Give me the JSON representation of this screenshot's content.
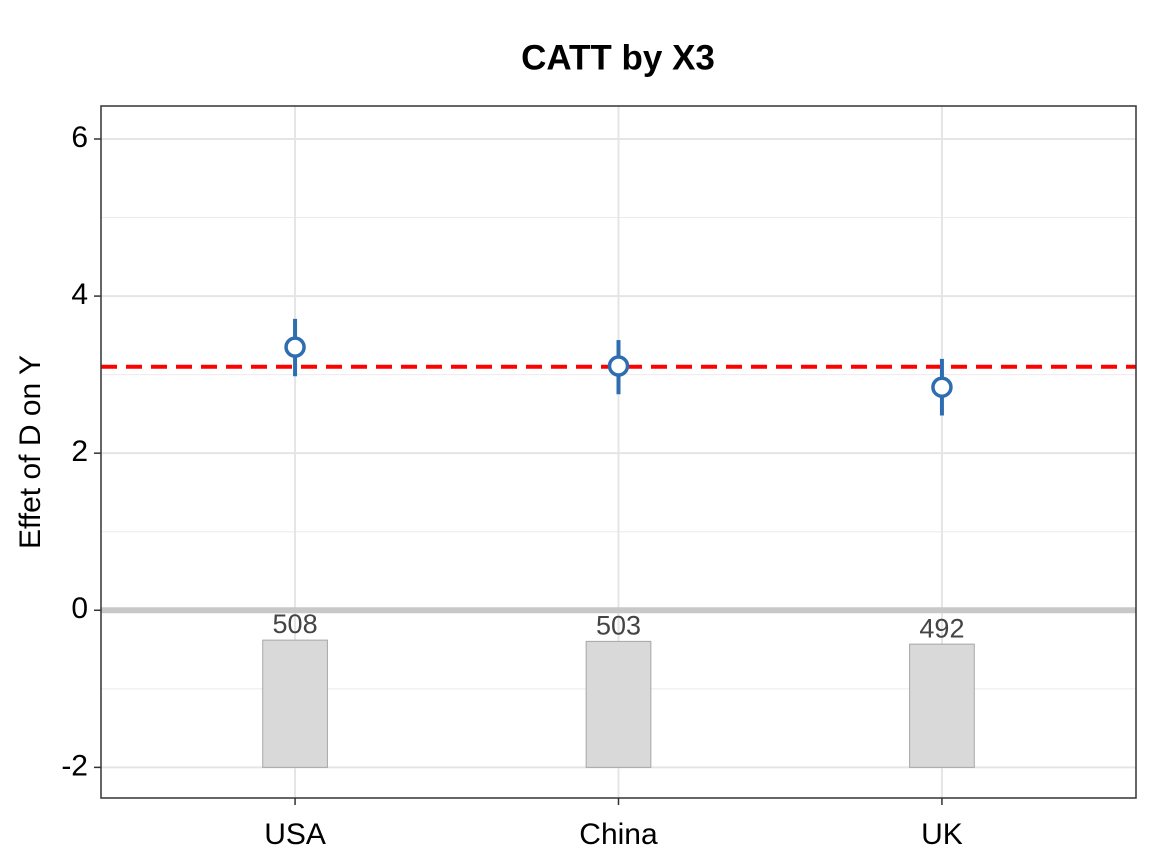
{
  "chart_data": {
    "type": "errorpoint",
    "title": "CATT by X3",
    "ylabel": "Effet of D on Y",
    "categories": [
      "USA",
      "China",
      "UK"
    ],
    "values": [
      3.35,
      3.11,
      2.84
    ],
    "lower": [
      2.98,
      2.75,
      2.48
    ],
    "upper": [
      3.71,
      3.44,
      3.2
    ],
    "color": "#2e6eb0",
    "hline": 3.1,
    "hline_color": "#ff0000",
    "counts": [
      508,
      503,
      492
    ],
    "count_color": "#d9d9d9",
    "ylim": [
      -2.39,
      6.42
    ],
    "yticks": [
      -2,
      0,
      2,
      4,
      6
    ],
    "grid": true
  }
}
